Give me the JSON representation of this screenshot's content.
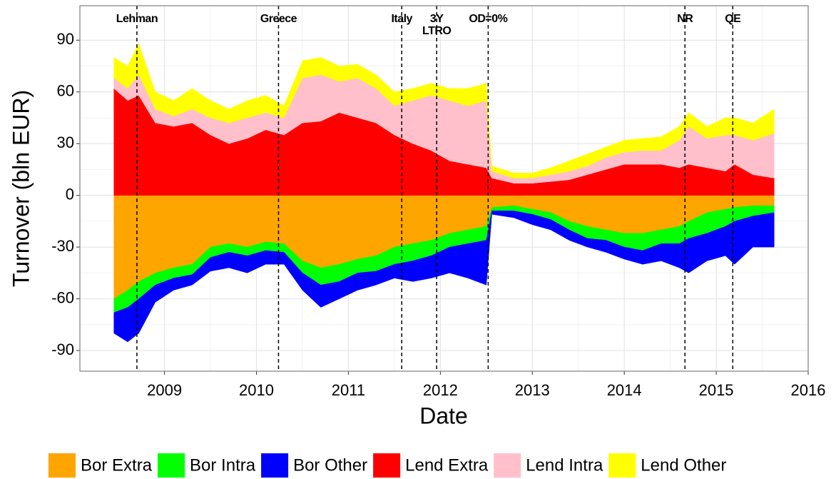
{
  "chart_data": {
    "type": "stacked-area",
    "x_label": "Date",
    "y_label": "Turnover (bln EUR)",
    "xlim": [
      2008.08,
      2016
    ],
    "xticks": [
      2009,
      2010,
      2011,
      2012,
      2013,
      2014,
      2015,
      2016
    ],
    "ylim": [
      -102,
      110
    ],
    "yticks": [
      -90,
      -60,
      -30,
      0,
      30,
      60,
      90
    ],
    "grid": true,
    "legend": "bottom",
    "events": [
      {
        "x": 2008.7,
        "lines": [
          "Lehman"
        ]
      },
      {
        "x": 2010.24,
        "lines": [
          "Greece"
        ]
      },
      {
        "x": 2011.58,
        "lines": [
          "Italy"
        ]
      },
      {
        "x": 2011.96,
        "lines": [
          "3Y",
          "LTRO"
        ]
      },
      {
        "x": 2012.52,
        "lines": [
          "OD=0%"
        ]
      },
      {
        "x": 2014.66,
        "lines": [
          "NR"
        ]
      },
      {
        "x": 2015.18,
        "lines": [
          "QE"
        ]
      }
    ],
    "x": [
      2008.45,
      2008.6,
      2008.72,
      2008.9,
      2009.1,
      2009.3,
      2009.5,
      2009.7,
      2009.9,
      2010.1,
      2010.3,
      2010.5,
      2010.7,
      2010.9,
      2011.1,
      2011.3,
      2011.5,
      2011.7,
      2011.9,
      2012.1,
      2012.3,
      2012.5,
      2012.56,
      2012.8,
      2013.0,
      2013.2,
      2013.4,
      2013.6,
      2013.8,
      2014.0,
      2014.2,
      2014.4,
      2014.6,
      2014.7,
      2014.9,
      2015.1,
      2015.2,
      2015.4,
      2015.63
    ],
    "series": [
      {
        "name": "Bor Extra",
        "color": "#FFA500",
        "values": [
          -60,
          -55,
          -50,
          -45,
          -42,
          -40,
          -30,
          -28,
          -30,
          -27,
          -28,
          -38,
          -42,
          -40,
          -37,
          -35,
          -30,
          -28,
          -26,
          -22,
          -20,
          -18,
          -7,
          -6,
          -8,
          -10,
          -15,
          -18,
          -20,
          -22,
          -22,
          -20,
          -18,
          -15,
          -10,
          -8,
          -7,
          -6,
          -6
        ]
      },
      {
        "name": "Bor Intra",
        "color": "#00FF00",
        "values": [
          -8,
          -10,
          -10,
          -7,
          -6,
          -6,
          -6,
          -5,
          -5,
          -5,
          -5,
          -7,
          -10,
          -10,
          -8,
          -9,
          -10,
          -10,
          -9,
          -8,
          -8,
          -8,
          -2,
          -3,
          -3,
          -4,
          -5,
          -7,
          -6,
          -8,
          -10,
          -8,
          -10,
          -10,
          -12,
          -10,
          -8,
          -6,
          -4
        ]
      },
      {
        "name": "Bor Other",
        "color": "#0000FF",
        "values": [
          -12,
          -20,
          -20,
          -10,
          -7,
          -6,
          -8,
          -9,
          -10,
          -8,
          -7,
          -10,
          -13,
          -10,
          -10,
          -8,
          -8,
          -12,
          -13,
          -15,
          -20,
          -26,
          -2,
          -4,
          -6,
          -6,
          -6,
          -5,
          -7,
          -7,
          -8,
          -10,
          -14,
          -20,
          -16,
          -17,
          -25,
          -18,
          -20
        ]
      },
      {
        "name": "Lend Extra",
        "color": "#FF0000",
        "values": [
          62,
          55,
          58,
          42,
          40,
          42,
          35,
          30,
          33,
          38,
          35,
          42,
          43,
          48,
          45,
          42,
          35,
          30,
          26,
          20,
          18,
          16,
          10,
          7,
          7,
          8,
          9,
          12,
          15,
          18,
          18,
          18,
          16,
          18,
          16,
          14,
          18,
          12,
          10
        ]
      },
      {
        "name": "Lend Intra",
        "color": "#FFC0CB",
        "values": [
          6,
          7,
          12,
          8,
          6,
          8,
          10,
          12,
          12,
          10,
          10,
          26,
          27,
          18,
          23,
          20,
          17,
          25,
          32,
          35,
          34,
          39,
          4,
          3,
          3,
          4,
          5,
          5,
          7,
          7,
          8,
          8,
          16,
          22,
          17,
          21,
          17,
          20,
          26
        ]
      },
      {
        "name": "Lend Other",
        "color": "#FFFF00",
        "values": [
          12,
          13,
          18,
          10,
          9,
          12,
          10,
          8,
          10,
          10,
          7,
          10,
          10,
          9,
          8,
          8,
          8,
          7,
          7,
          7,
          10,
          10,
          3,
          3,
          3,
          4,
          6,
          7,
          6,
          7,
          7,
          8,
          8,
          8,
          7,
          10,
          10,
          10,
          14
        ]
      }
    ]
  }
}
